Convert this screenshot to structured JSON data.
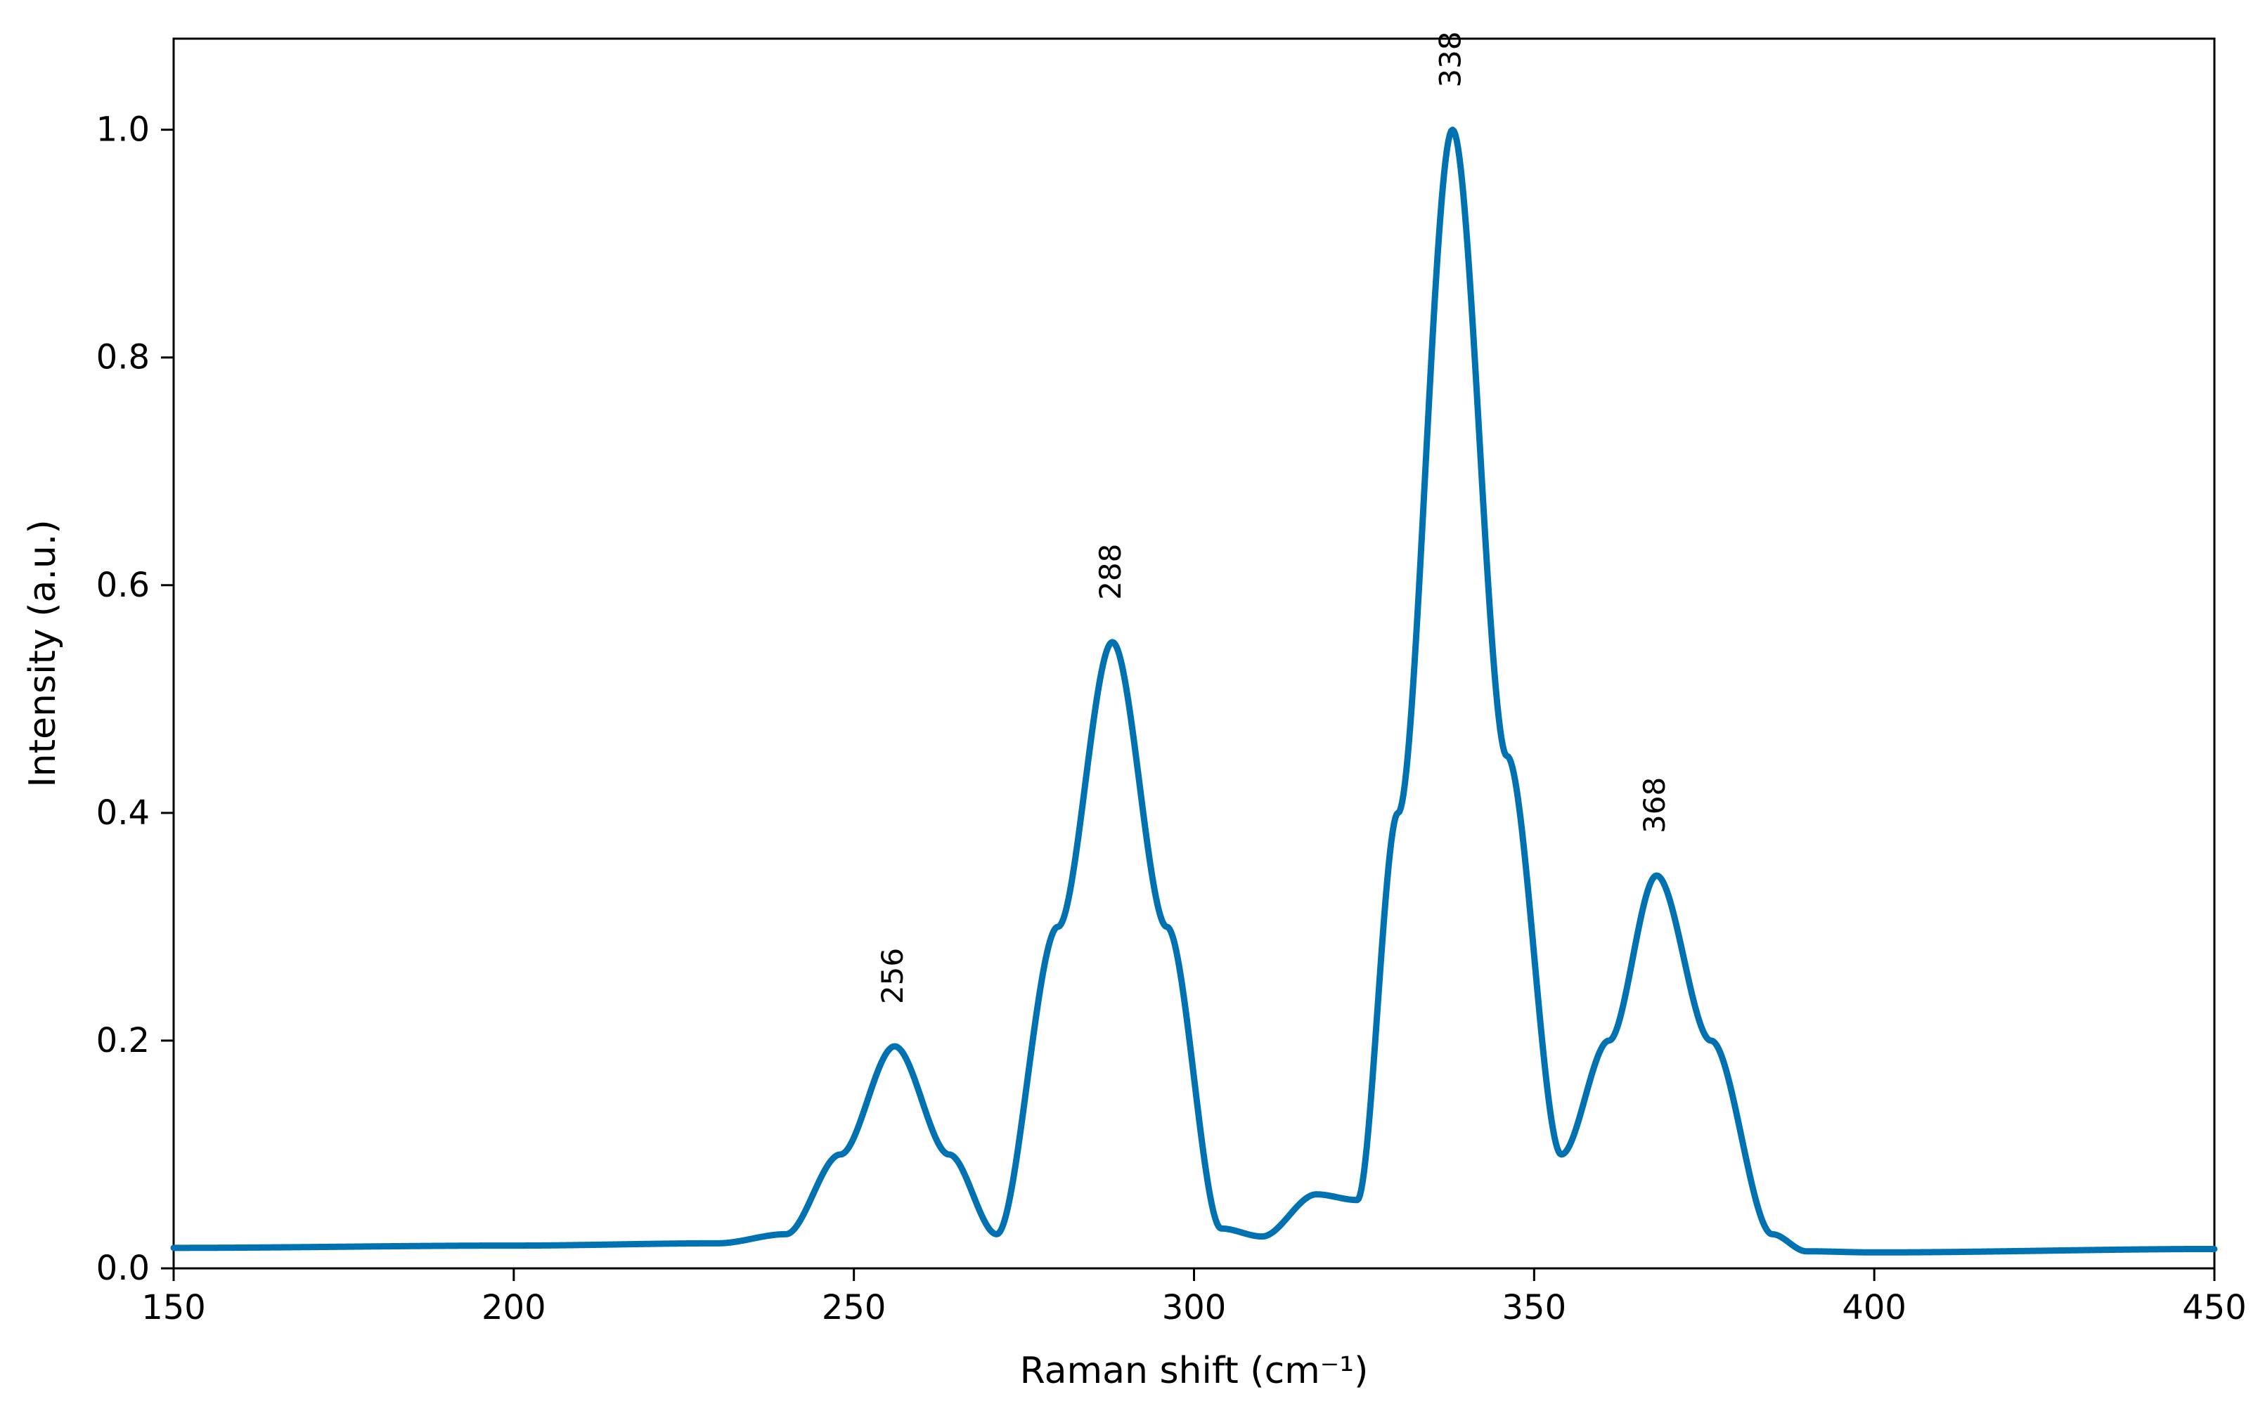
{
  "chart_data": {
    "type": "line",
    "title": "",
    "xlabel": "Raman shift (cm⁻¹)",
    "ylabel": "Intensity (a.u.)",
    "xlim": [
      150,
      450
    ],
    "ylim": [
      0,
      1.08
    ],
    "x_ticks": [
      150,
      200,
      250,
      300,
      350,
      400,
      450
    ],
    "x_tick_labels": [
      "150",
      "200",
      "250",
      "300",
      "350",
      "400",
      "450"
    ],
    "y_ticks": [
      0.0,
      0.2,
      0.4,
      0.6,
      0.8,
      1.0
    ],
    "y_tick_labels": [
      "0.0",
      "0.2",
      "0.4",
      "0.6",
      "0.8",
      "1.0"
    ],
    "grid": false,
    "legend": "none",
    "series": [
      {
        "color": "#0072B2",
        "x": [
          150,
          200,
          230,
          240,
          248,
          256,
          264,
          271,
          280,
          288,
          296,
          304,
          310,
          318,
          324,
          330,
          338,
          346,
          354,
          361,
          368,
          376,
          385,
          390,
          400,
          450
        ],
        "y": [
          0.018,
          0.02,
          0.022,
          0.03,
          0.1,
          0.195,
          0.1,
          0.03,
          0.3,
          0.55,
          0.3,
          0.035,
          0.028,
          0.065,
          0.06,
          0.4,
          1.0,
          0.45,
          0.1,
          0.2,
          0.345,
          0.2,
          0.03,
          0.015,
          0.014,
          0.017
        ]
      }
    ],
    "annotations": [
      {
        "text": "256",
        "x": 256,
        "y": 0.195
      },
      {
        "text": "288",
        "x": 288,
        "y": 0.55
      },
      {
        "text": "338",
        "x": 338,
        "y": 1.0
      },
      {
        "text": "368",
        "x": 368,
        "y": 0.345
      }
    ]
  }
}
